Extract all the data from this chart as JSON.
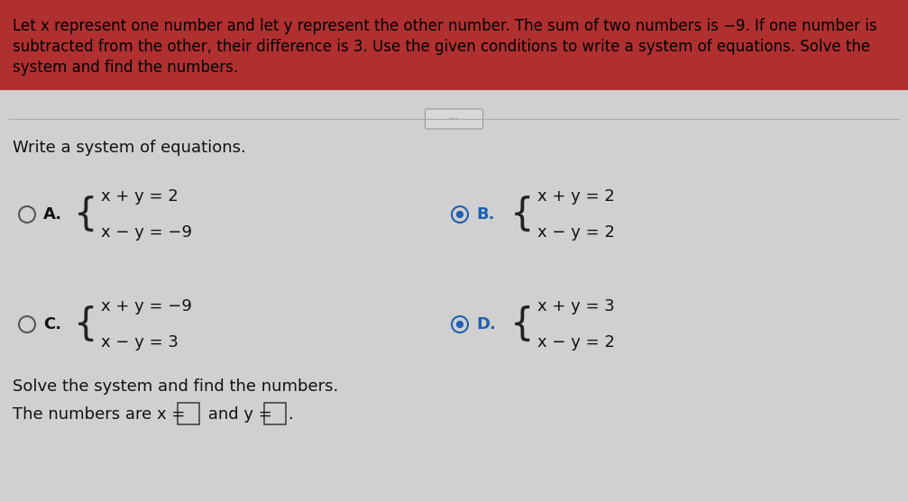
{
  "bg_color": "#d8d8d8",
  "header_bg": "#b03030",
  "header_text_line1": "Let x represent one number and let y represent the other number. The sum of two numbers is −9. If one number is",
  "header_text_line2": "subtracted from the other, their difference is 3. Use the given conditions to write a system of equations. Solve the",
  "header_text_line3": "system and find the numbers.",
  "header_text_color": "#000000",
  "body_bg": "#d8d8d8",
  "write_system_label": "Write a system of equations.",
  "option_A_label": "A.",
  "option_A_eq1": "x + y = 2",
  "option_A_eq2": "x − y = −9",
  "option_B_label": "B.",
  "option_B_eq1": "x + y = 2",
  "option_B_eq2": "x − y = 2",
  "option_C_label": "C.",
  "option_C_eq1": "x + y = −9",
  "option_C_eq2": "x − y = 3",
  "option_D_label": "D.",
  "option_D_eq1": "x + y = 3",
  "option_D_eq2": "x − y = 2",
  "solve_label": "Solve the system and find the numbers.",
  "answer_label": "The numbers are x =",
  "answer_label2": " and y =",
  "text_color": "#111111",
  "circle_color": "#555555",
  "selected_circle_color": "#2060b0",
  "brace_color": "#222222",
  "box_border_color": "#444444",
  "header_font_size": 12.0,
  "body_font_size": 13.0,
  "eq_font_size": 13.0
}
